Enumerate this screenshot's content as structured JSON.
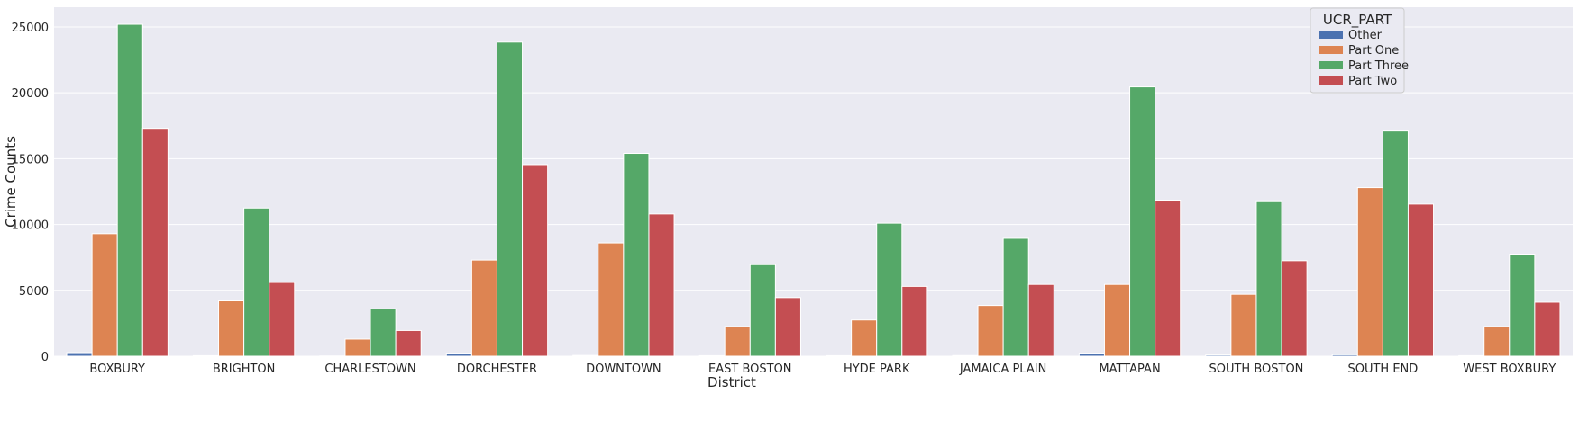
{
  "chart_data": {
    "type": "bar",
    "xlabel": "District",
    "ylabel": "Crime Counts",
    "ylim": [
      0,
      26500
    ],
    "yticks": [
      0,
      5000,
      10000,
      15000,
      20000,
      25000
    ],
    "grid": true,
    "legend": {
      "title": "UCR_PART",
      "placement": "top-right"
    },
    "categories": [
      "BOXBURY",
      "BRIGHTON",
      "CHARLESTOWN",
      "DORCHESTER",
      "DOWNTOWN",
      "EAST BOSTON",
      "HYDE PARK",
      "JAMAICA PLAIN",
      "MATTAPAN",
      "SOUTH BOSTON",
      "SOUTH END",
      "WEST BOXBURY"
    ],
    "series": [
      {
        "name": "Other",
        "color": "#4c72b0",
        "values": [
          270,
          40,
          20,
          230,
          60,
          40,
          40,
          50,
          230,
          90,
          110,
          40
        ]
      },
      {
        "name": "Part One",
        "color": "#dd8452",
        "values": [
          9300,
          4200,
          1300,
          7300,
          8600,
          2250,
          2750,
          3850,
          5450,
          4700,
          12800,
          2250
        ]
      },
      {
        "name": "Part Three",
        "color": "#55a868",
        "values": [
          25200,
          11250,
          3600,
          23850,
          15400,
          6950,
          10100,
          8950,
          20450,
          11800,
          17100,
          7750
        ]
      },
      {
        "name": "Part Two",
        "color": "#c44e52",
        "values": [
          17300,
          5600,
          1950,
          14550,
          10800,
          4450,
          5300,
          5450,
          11850,
          7250,
          11550,
          4100
        ]
      }
    ]
  }
}
